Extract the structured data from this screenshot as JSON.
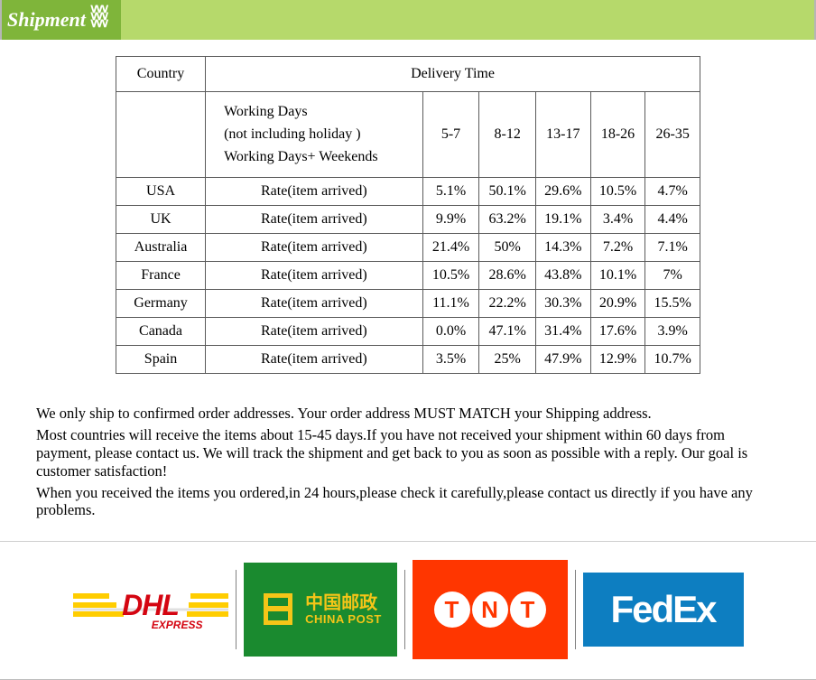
{
  "header": {
    "tab_label": "Shipment"
  },
  "table": {
    "header": {
      "country": "Country",
      "delivery_time": "Delivery Time"
    },
    "working_days": {
      "line1": "Working Days",
      "line2": "(not including holiday )",
      "line3": "Working Days+ Weekends"
    },
    "ranges": [
      "5-7",
      "8-12",
      "13-17",
      "18-26",
      "26-35"
    ],
    "rate_label": "Rate(item arrived)",
    "rows": [
      {
        "country": "USA",
        "values": [
          "5.1%",
          "50.1%",
          "29.6%",
          "10.5%",
          "4.7%"
        ]
      },
      {
        "country": "UK",
        "values": [
          "9.9%",
          "63.2%",
          "19.1%",
          "3.4%",
          "4.4%"
        ]
      },
      {
        "country": "Australia",
        "values": [
          "21.4%",
          "50%",
          "14.3%",
          "7.2%",
          "7.1%"
        ]
      },
      {
        "country": "France",
        "values": [
          "10.5%",
          "28.6%",
          "43.8%",
          "10.1%",
          "7%"
        ]
      },
      {
        "country": "Germany",
        "values": [
          "11.1%",
          "22.2%",
          "30.3%",
          "20.9%",
          "15.5%"
        ]
      },
      {
        "country": "Canada",
        "values": [
          "0.0%",
          "47.1%",
          "31.4%",
          "17.6%",
          "3.9%"
        ]
      },
      {
        "country": "Spain",
        "values": [
          "3.5%",
          "25%",
          "47.9%",
          "12.9%",
          "10.7%"
        ]
      }
    ]
  },
  "notes": {
    "p1": "We only ship to confirmed order addresses. Your order address MUST MATCH your Shipping address.",
    "p2": "Most countries will receive the items about 15-45 days.If you have not received your shipment within 60 days from payment, please contact us. We will track the shipment and get back to you as soon as possible with a reply. Our goal is customer satisfaction!",
    "p3": "When you received the items you ordered,in 24 hours,please check it carefully,please contact us directly if you have any problems."
  },
  "carriers": {
    "dhl": {
      "name": "DHL",
      "sub": "EXPRESS",
      "brand_color": "#d40511",
      "accent": "#ffcd00"
    },
    "chinapost": {
      "cn": "中国邮政",
      "en": "CHINA POST",
      "bg": "#1a8a2f",
      "fg": "#f5c518"
    },
    "tnt": {
      "letters": [
        "T",
        "N",
        "T"
      ],
      "bg": "#ff3600"
    },
    "fedex": {
      "fed": "Fed",
      "ex": "Ex",
      "bg": "#0d7ec1"
    }
  }
}
